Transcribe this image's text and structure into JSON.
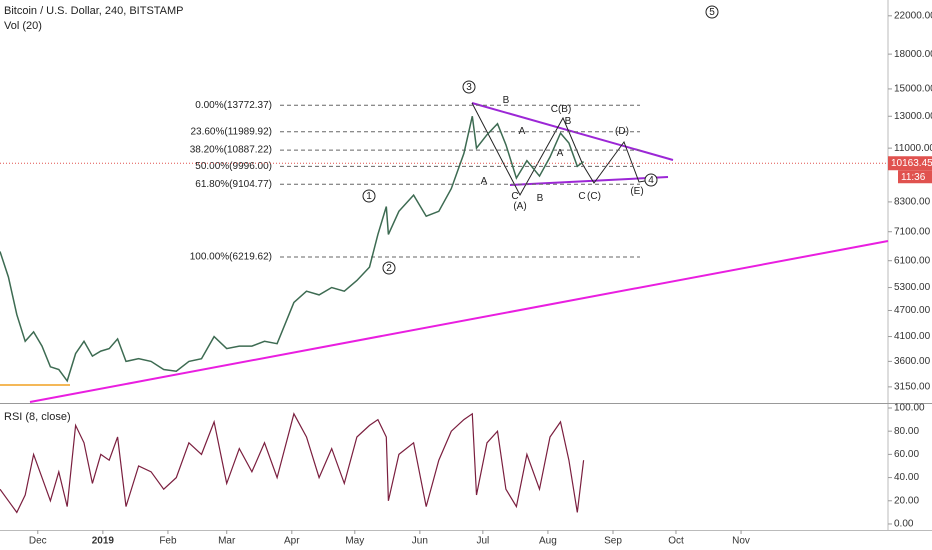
{
  "chart_data": {
    "type": "line",
    "title": "Bitcoin / U.S. Dollar, 240, BITSTAMP",
    "volume_label": "Vol (20)",
    "log_scale": true,
    "x": [
      "2018-11-13",
      "2018-11-17",
      "2018-11-21",
      "2018-11-25",
      "2018-11-29",
      "2018-12-03",
      "2018-12-07",
      "2018-12-11",
      "2018-12-15",
      "2018-12-19",
      "2018-12-23",
      "2018-12-27",
      "2018-12-31",
      "2019-01-04",
      "2019-01-08",
      "2019-01-12",
      "2019-01-18",
      "2019-01-24",
      "2019-01-30",
      "2019-02-05",
      "2019-02-11",
      "2019-02-17",
      "2019-02-23",
      "2019-03-01",
      "2019-03-07",
      "2019-03-13",
      "2019-03-19",
      "2019-03-25",
      "2019-04-02",
      "2019-04-08",
      "2019-04-14",
      "2019-04-20",
      "2019-04-26",
      "2019-05-02",
      "2019-05-08",
      "2019-05-12",
      "2019-05-16",
      "2019-05-17",
      "2019-05-22",
      "2019-05-29",
      "2019-06-04",
      "2019-06-10",
      "2019-06-16",
      "2019-06-22",
      "2019-06-26",
      "2019-06-28",
      "2019-07-03",
      "2019-07-08",
      "2019-07-12",
      "2019-07-17",
      "2019-07-22",
      "2019-07-28",
      "2019-08-02",
      "2019-08-07",
      "2019-08-11",
      "2019-08-15",
      "2019-08-18"
    ],
    "series": [
      {
        "color": "#3d6b52",
        "values": [
          6400,
          5600,
          4600,
          4000,
          4200,
          3900,
          3500,
          3450,
          3250,
          3750,
          4000,
          3700,
          3800,
          3850,
          4050,
          3600,
          3650,
          3600,
          3450,
          3420,
          3600,
          3650,
          4100,
          3850,
          3900,
          3900,
          4000,
          3950,
          4900,
          5200,
          5100,
          5300,
          5200,
          5500,
          5900,
          7000,
          8100,
          7000,
          7900,
          8600,
          7700,
          7900,
          8900,
          10700,
          13000,
          11000,
          11800,
          12500,
          11200,
          9400,
          10300,
          9500,
          10500,
          11900,
          11300,
          10000,
          10250
        ]
      }
    ],
    "xlim": [
      "2018-11-13",
      "2020-01-10"
    ],
    "xticks": [
      {
        "value": "2018-12-01",
        "label": "Dec"
      },
      {
        "value": "2019-01-01",
        "label": "2019"
      },
      {
        "value": "2019-02-01",
        "label": "Feb"
      },
      {
        "value": "2019-03-01",
        "label": "Mar"
      },
      {
        "value": "2019-04-01",
        "label": "Apr"
      },
      {
        "value": "2019-05-01",
        "label": "May"
      },
      {
        "value": "2019-06-01",
        "label": "Jun"
      },
      {
        "value": "2019-07-01",
        "label": "Jul"
      },
      {
        "value": "2019-08-01",
        "label": "Aug"
      },
      {
        "value": "2019-09-01",
        "label": "Sep"
      },
      {
        "value": "2019-10-01",
        "label": "Oct"
      },
      {
        "value": "2019-11-01",
        "label": "Nov"
      }
    ],
    "ylim": [
      2910,
      23900
    ],
    "yticks": [
      {
        "value": 22000,
        "label": "22000.00"
      },
      {
        "value": 18000,
        "label": "18000.00"
      },
      {
        "value": 15000,
        "label": "15000.00"
      },
      {
        "value": 13000,
        "label": "13000.00"
      },
      {
        "value": 11000,
        "label": "11000.00"
      },
      {
        "value": 8300,
        "label": "8300.00"
      },
      {
        "value": 7100,
        "label": "7100.00"
      },
      {
        "value": 6100,
        "label": "6100.00"
      },
      {
        "value": 5300,
        "label": "5300.00"
      },
      {
        "value": 4700,
        "label": "4700.00"
      },
      {
        "value": 4100,
        "label": "4100.00"
      },
      {
        "value": 3600,
        "label": "3600.00"
      },
      {
        "value": 3150,
        "label": "3150.00"
      }
    ],
    "last_price": {
      "value": 10163.45,
      "label": "10163.45",
      "color": "#e0524f"
    },
    "countdown": "11:36",
    "fib_levels": [
      {
        "label": "0.00%(13772.37)",
        "value": 13772.37
      },
      {
        "label": "23.60%(11989.92)",
        "value": 11989.92
      },
      {
        "label": "38.20%(10887.22)",
        "value": 10887.22
      },
      {
        "label": "50.00%(9996.00)",
        "value": 9996.0
      },
      {
        "label": "61.80%(9104.77)",
        "value": 9104.77
      },
      {
        "label": "100.00%(6219.62)",
        "value": 6219.62
      }
    ],
    "wave_labels": [
      {
        "text": "5",
        "circled": true
      },
      {
        "text": "3",
        "circled": true
      },
      {
        "text": "1",
        "circled": true
      },
      {
        "text": "2",
        "circled": true
      },
      {
        "text": "4",
        "circled": true
      },
      {
        "text": "B"
      },
      {
        "text": "A"
      },
      {
        "text": "C(B)"
      },
      {
        "text": "B"
      },
      {
        "text": "A"
      },
      {
        "text": "(D)"
      },
      {
        "text": "A"
      },
      {
        "text": "C"
      },
      {
        "text": "(A)"
      },
      {
        "text": "B"
      },
      {
        "text": "C"
      },
      {
        "text": "(C)"
      },
      {
        "text": "(E)"
      }
    ],
    "rsi": {
      "title": "RSI (8, close)",
      "color": "#7b1f3f",
      "values": [
        30,
        20,
        10,
        25,
        60,
        40,
        20,
        45,
        15,
        85,
        70,
        35,
        60,
        55,
        75,
        15,
        50,
        45,
        30,
        40,
        70,
        60,
        88,
        35,
        65,
        45,
        70,
        40,
        95,
        75,
        40,
        65,
        35,
        75,
        85,
        90,
        75,
        20,
        60,
        70,
        15,
        55,
        80,
        90,
        95,
        25,
        70,
        80,
        30,
        15,
        60,
        30,
        75,
        88,
        55,
        10,
        55
      ],
      "ylim": [
        -5.2,
        104.3
      ],
      "yticks": [
        {
          "value": 100,
          "label": "100.00"
        },
        {
          "value": 80,
          "label": "80.00"
        },
        {
          "value": 60,
          "label": "60.00"
        },
        {
          "value": 40,
          "label": "40.00"
        },
        {
          "value": 20,
          "label": "20.00"
        },
        {
          "value": 0,
          "label": "0.00"
        }
      ]
    }
  }
}
